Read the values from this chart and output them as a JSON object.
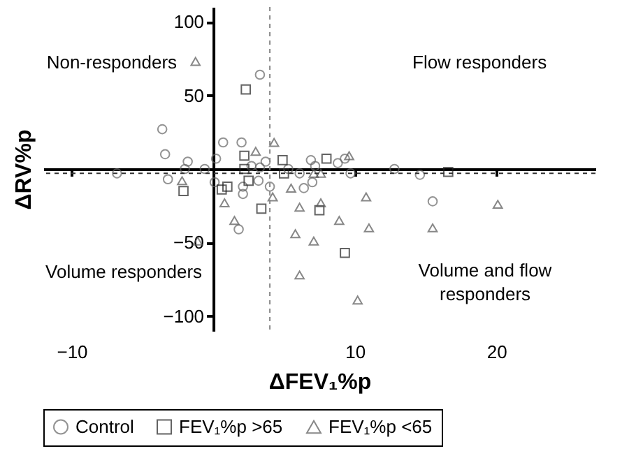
{
  "chart_data": {
    "type": "scatter",
    "xlabel": "ΔFEV₁%p",
    "ylabel": "ΔRV%p",
    "xlim": [
      -12,
      27
    ],
    "ylim": [
      -110,
      110
    ],
    "xticks": [
      -10,
      10,
      20
    ],
    "yticks": [
      -100,
      -50,
      50,
      100
    ],
    "legend": "bottom",
    "grid": false,
    "annotations": [
      "Non-responders",
      "Flow responders",
      "Volume responders",
      "Volume and flow responders"
    ],
    "ref_lines": [
      {
        "axis": "x",
        "value": 4,
        "color": "#888888",
        "line_style": "dashed"
      },
      {
        "axis": "y",
        "value": -3,
        "color": "#333333",
        "line_style": "dashed"
      }
    ],
    "series": [
      {
        "name": "Control",
        "color": "#666666",
        "marker": "circle",
        "x": [
          3.3,
          -3.6,
          -3.4,
          -6.8,
          -1.8,
          -2,
          -0.6,
          0.2,
          0.7,
          2,
          -3.2,
          0.1,
          2.1,
          2.1,
          2.7,
          3.3,
          3.2,
          3.7,
          4,
          1.8,
          5.3,
          6.1,
          6.9,
          7.2,
          8.8,
          9.3,
          9.7,
          12.8,
          14.6,
          6.4,
          7,
          15.5
        ],
        "values": [
          64,
          27,
          10,
          -3,
          5,
          0,
          0,
          7,
          18,
          18,
          -7,
          -9,
          -17,
          -12,
          2,
          1,
          -8,
          5,
          -12,
          -41,
          0,
          -3,
          6,
          2,
          4,
          7,
          -3,
          0,
          -4,
          -13,
          -9,
          -22
        ]
      },
      {
        "name": "FEV₁%p >65",
        "color": "#222222",
        "marker": "square",
        "x": [
          2.3,
          -2.1,
          0.6,
          1,
          2.2,
          2.2,
          2.5,
          3.4,
          4.9,
          5,
          8,
          16.6,
          7.5,
          9.3
        ],
        "values": [
          54,
          -15,
          -14,
          -12,
          9,
          0,
          -8,
          -27,
          6,
          -3,
          7,
          -2,
          -28,
          -57
        ]
      },
      {
        "name": "FEV₁%p <65",
        "color": "#555555",
        "marker": "triangle",
        "x": [
          -1.25,
          -2.2,
          0.8,
          1.5,
          3,
          4.3,
          4.2,
          -1.1,
          7.1,
          7.6,
          9.6,
          5.5,
          6.1,
          7.6,
          10.8,
          20.1,
          8.9,
          11,
          15.5,
          5.8,
          7.1,
          6.1,
          10.2
        ],
        "values": [
          73,
          -8,
          -23,
          -35,
          12,
          18,
          -19,
          -49,
          -3,
          -3,
          9,
          -13,
          -26,
          -23,
          -19,
          -24,
          -35,
          -40,
          -40,
          -44,
          -49,
          -72,
          -89
        ]
      }
    ]
  }
}
